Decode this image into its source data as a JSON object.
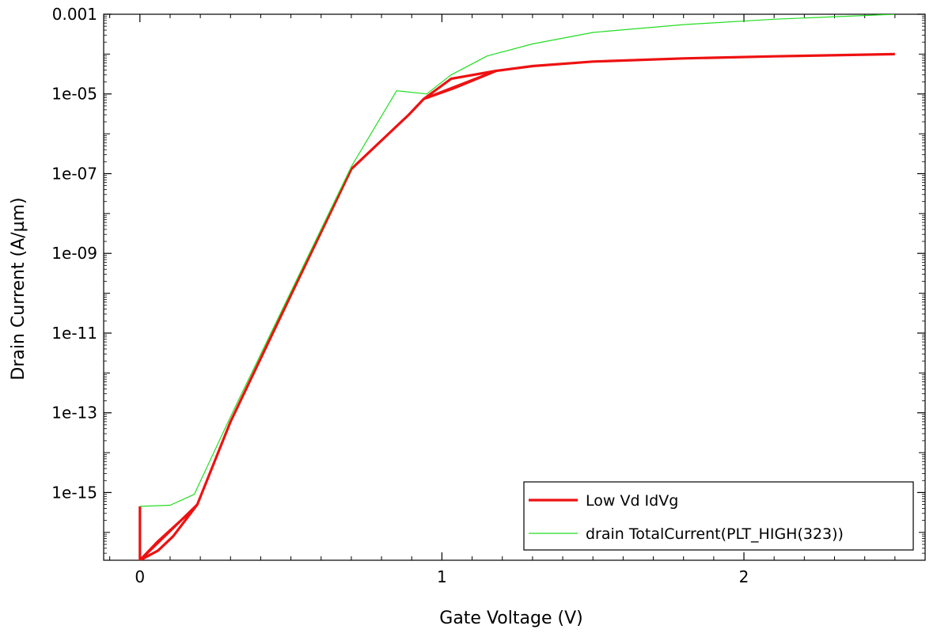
{
  "chart_data": {
    "type": "line",
    "xlabel": "Gate Voltage (V)",
    "ylabel": "Drain Current (A/µm)",
    "x_scale": "linear",
    "y_scale": "log",
    "xlim": [
      -0.12,
      2.6
    ],
    "ylim": [
      2e-17,
      0.001
    ],
    "x_ticks": [
      {
        "value": 0,
        "label": "0"
      },
      {
        "value": 1,
        "label": "1"
      },
      {
        "value": 2,
        "label": "2"
      }
    ],
    "y_ticks": [
      {
        "value": 1e-15,
        "label": "1e-15"
      },
      {
        "value": 1e-13,
        "label": "1e-13"
      },
      {
        "value": 1e-11,
        "label": "1e-11"
      },
      {
        "value": 1e-09,
        "label": "1e-09"
      },
      {
        "value": 1e-07,
        "label": "1e-07"
      },
      {
        "value": 1e-05,
        "label": "1e-05"
      },
      {
        "value": 0.001,
        "label": "0.001"
      }
    ],
    "grid": false,
    "legend_position": "bottom-right",
    "series": [
      {
        "name": "Low Vd IdVg",
        "color": "#ee1111",
        "line_width": "thick",
        "x": [
          0,
          0,
          0.06,
          0.11,
          0.19,
          0.15,
          0.06,
          0,
          0.19,
          0.3,
          0.5,
          0.7,
          0.89,
          0.94,
          1.04,
          1.18,
          1.03,
          0.94,
          1.18,
          1.3,
          1.5,
          1.8,
          2.1,
          2.5
        ],
        "y": [
          4.5e-16,
          2e-17,
          3.5e-17,
          8e-17,
          5e-16,
          2.5e-16,
          6e-17,
          2e-17,
          5e-16,
          6e-14,
          9e-11,
          1.3e-07,
          3e-06,
          7.5e-06,
          1.4e-05,
          3.8e-05,
          2.4e-05,
          7.5e-06,
          3.8e-05,
          5e-05,
          6.5e-05,
          7.8e-05,
          8.8e-05,
          0.0001
        ]
      },
      {
        "name": "drain TotalCurrent(PLT_HIGH(323))",
        "color": "#22dd22",
        "line_width": "thin",
        "x": [
          0,
          0.1,
          0.18,
          0.3,
          0.5,
          0.7,
          0.85,
          0.95,
          1.03,
          1.15,
          1.3,
          1.5,
          1.8,
          2.1,
          2.5
        ],
        "y": [
          4.5e-16,
          4.8e-16,
          9e-16,
          8e-14,
          1.1e-10,
          1.5e-07,
          1.2e-05,
          1e-05,
          3e-05,
          9e-05,
          0.00018,
          0.00035,
          0.00055,
          0.00075,
          0.001
        ]
      }
    ]
  }
}
